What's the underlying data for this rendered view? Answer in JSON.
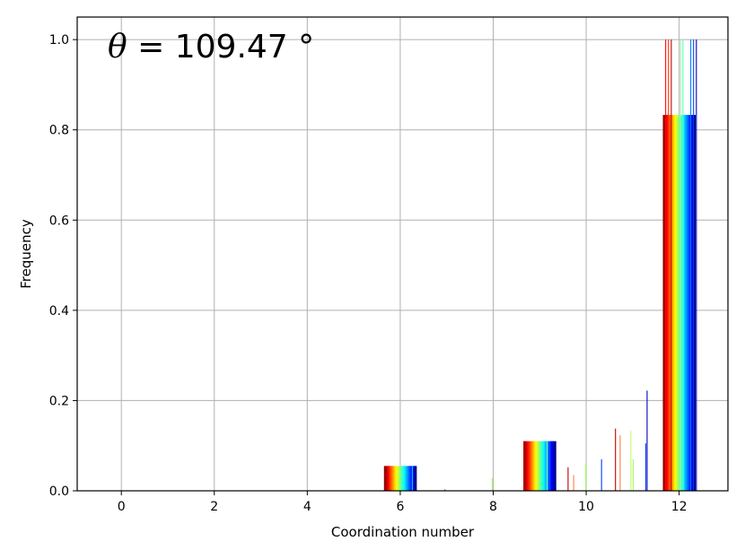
{
  "chart_data": {
    "type": "bar",
    "xlabel": "Coordination number",
    "ylabel": "Frequency",
    "annotation": {
      "symbol": "θ",
      "text": " = 109.47 °"
    },
    "xlim": [
      -0.95,
      13.05
    ],
    "ylim": [
      0.0,
      1.05
    ],
    "xticks": [
      0,
      2,
      4,
      6,
      8,
      10,
      12
    ],
    "yticks": [
      0.0,
      0.2,
      0.4,
      0.6,
      0.8,
      1.0
    ],
    "xtick_labels": [
      "0",
      "2",
      "4",
      "6",
      "8",
      "10",
      "12"
    ],
    "ytick_labels": [
      "0.0",
      "0.2",
      "0.4",
      "0.6",
      "0.8",
      "1.0"
    ],
    "grid": true,
    "colormap": "jet",
    "n_series": 40,
    "bar_groups": [
      {
        "center": 6,
        "left": 5.65,
        "right": 6.35,
        "value": 0.055
      },
      {
        "center": 9,
        "left": 8.65,
        "right": 9.35,
        "value": 0.11
      },
      {
        "center": 12,
        "left": 11.65,
        "right": 12.35,
        "value": 0.833
      }
    ],
    "spikes": [
      {
        "x": 5.7,
        "value": 0.055,
        "color": "#c00000"
      },
      {
        "x": 6.25,
        "value": 0.055,
        "color": "#00d0ff"
      },
      {
        "x": 6.95,
        "value": 0.003,
        "color": "#c00000"
      },
      {
        "x": 7.97,
        "value": 0.028,
        "color": "#a0ff60"
      },
      {
        "x": 8.65,
        "value": 0.11,
        "color": "#c00000"
      },
      {
        "x": 9.15,
        "value": 0.11,
        "color": "#80ffb0"
      },
      {
        "x": 9.6,
        "value": 0.052,
        "color": "#c00000"
      },
      {
        "x": 9.72,
        "value": 0.035,
        "color": "#ff8040"
      },
      {
        "x": 9.98,
        "value": 0.06,
        "color": "#a0ff60"
      },
      {
        "x": 10.32,
        "value": 0.07,
        "color": "#0040ff"
      },
      {
        "x": 10.62,
        "value": 0.138,
        "color": "#c00000"
      },
      {
        "x": 10.72,
        "value": 0.123,
        "color": "#ff8040"
      },
      {
        "x": 10.95,
        "value": 0.133,
        "color": "#c0ff60"
      },
      {
        "x": 11.0,
        "value": 0.07,
        "color": "#a0ff60"
      },
      {
        "x": 11.27,
        "value": 0.105,
        "color": "#0040ff"
      },
      {
        "x": 11.3,
        "value": 0.222,
        "color": "#0000c0"
      },
      {
        "x": 11.7,
        "value": 1.0,
        "color": "#ff0000"
      },
      {
        "x": 11.76,
        "value": 1.0,
        "color": "#ff3000"
      },
      {
        "x": 11.82,
        "value": 1.0,
        "color": "#c00000"
      },
      {
        "x": 12.02,
        "value": 1.0,
        "color": "#a0ffa0"
      },
      {
        "x": 12.07,
        "value": 1.0,
        "color": "#60ffc0"
      },
      {
        "x": 12.24,
        "value": 1.0,
        "color": "#0080ff"
      },
      {
        "x": 12.3,
        "value": 1.0,
        "color": "#0040ff"
      },
      {
        "x": 12.36,
        "value": 1.0,
        "color": "#0000c0"
      }
    ]
  }
}
